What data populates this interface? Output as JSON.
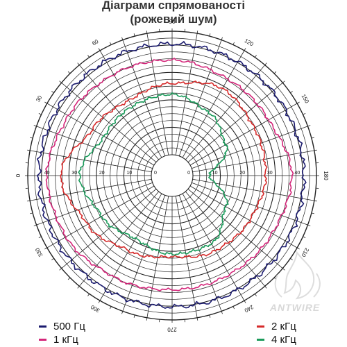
{
  "title": {
    "line1": "Діаграми спрямованості",
    "line2": "(рожевий шум)"
  },
  "watermark": "ANTWIRE",
  "chart_data": {
    "type": "polar-line",
    "title": "Діаграми спрямованості (рожевий шум)",
    "angle_labels": [
      "0",
      "30",
      "60",
      "90",
      "120",
      "150",
      "180",
      "210",
      "240",
      "270",
      "300",
      "330"
    ],
    "radial_tick_labels": [
      "0",
      "10",
      "20",
      "30",
      "40"
    ],
    "rlim": [
      0,
      45
    ],
    "rticks": [
      0,
      10,
      20,
      30,
      40
    ],
    "angle_zero_position": "left",
    "angle_direction": "clockwise",
    "grid": true,
    "legend_position": "bottom",
    "angles": [
      0,
      30,
      60,
      90,
      120,
      150,
      180,
      210,
      240,
      270,
      300,
      330
    ],
    "series": [
      {
        "name": "500 Гц",
        "color": "#1a1a6e",
        "values": [
          41,
          40.8,
          40.6,
          40.4,
          40.2,
          40.2,
          40.4,
          40.6,
          40.4,
          40.2,
          40.4,
          40.8
        ]
      },
      {
        "name": "1 кГц",
        "color": "#d4267a",
        "values": [
          38,
          36,
          35,
          34.5,
          33,
          33,
          36,
          34.5,
          34,
          34,
          35,
          37
        ]
      },
      {
        "name": "2 кГц",
        "color": "#d62a2a",
        "values": [
          33,
          26,
          24,
          26,
          29,
          27,
          26.5,
          25,
          24,
          22,
          24,
          28
        ]
      },
      {
        "name": "4 кГц",
        "color": "#1a9a5a",
        "values": [
          26,
          21,
          21.5,
          22,
          19,
          15,
          6,
          15,
          21,
          21,
          19,
          22
        ]
      }
    ]
  }
}
